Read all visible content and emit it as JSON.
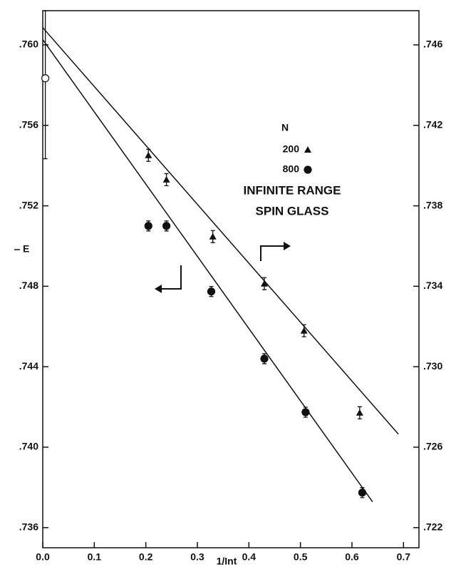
{
  "chart_data": {
    "type": "scatter",
    "title": [
      "INFINITE RANGE",
      "SPIN GLASS"
    ],
    "legend_title": "N",
    "x_label": "1/Int",
    "y_label": "E",
    "xlim": [
      0,
      0.73
    ],
    "xticks": [
      {
        "value": 0,
        "label": "0.0"
      },
      0.1,
      0.2,
      0.3,
      0.4,
      0.5,
      0.6,
      0.7
    ],
    "ylim": [
      0.735,
      0.7617
    ],
    "yticks": [
      {
        "value": 0.736,
        "label": ".736"
      },
      {
        "value": 0.74,
        "label": ".740"
      },
      {
        "value": 0.744,
        "label": ".744"
      },
      {
        "value": 0.748,
        "label": ".748"
      },
      {
        "value": 0.752,
        "label": ".752"
      },
      {
        "value": 0.756,
        "label": ".756"
      },
      {
        "value": 0.76,
        "label": ".760"
      }
    ],
    "y2lim": [
      0.721,
      0.7477
    ],
    "y2ticks": [
      {
        "value": 0.722,
        "label": ".722"
      },
      {
        "value": 0.726,
        "label": ".726"
      },
      {
        "value": 0.73,
        "label": ".730"
      },
      {
        "value": 0.734,
        "label": ".734"
      },
      {
        "value": 0.738,
        "label": ".738"
      },
      {
        "value": 0.742,
        "label": ".742"
      },
      {
        "value": 0.746,
        "label": ".746"
      }
    ],
    "series": [
      {
        "name": "200",
        "marker": "triangle",
        "axis": "y2",
        "color": "#111111",
        "x": [
          0.205,
          0.24,
          0.33,
          0.43,
          0.507,
          0.615
        ],
        "values": [
          0.74051,
          0.7393,
          0.73647,
          0.73413,
          0.73179,
          0.72771
        ],
        "errors": [
          0.0003,
          0.0003,
          0.0003,
          0.0003,
          0.0003,
          0.0003
        ]
      },
      {
        "name": "800",
        "marker": "circle",
        "axis": "y",
        "color": "#111111",
        "x": [
          0.205,
          0.24,
          0.327,
          0.43,
          0.51,
          0.62
        ],
        "values": [
          0.751,
          0.751,
          0.74774,
          0.7444,
          0.74174,
          0.73774
        ],
        "errors": [
          0.00025,
          0.00025,
          0.00025,
          0.00025,
          0.00025,
          0.00025
        ]
      }
    ],
    "extrapolated_points": [
      {
        "x": 0.005,
        "value": 0.75834,
        "error": 0.004,
        "axis": "y"
      }
    ],
    "fit_lines": [
      {
        "axis": "y2",
        "x": [
          0,
          0.69
        ],
        "values": [
          0.74686,
          0.72665
        ]
      },
      {
        "axis": "y",
        "x": [
          0,
          0.64
        ],
        "values": [
          0.76026,
          0.73728
        ]
      }
    ]
  }
}
